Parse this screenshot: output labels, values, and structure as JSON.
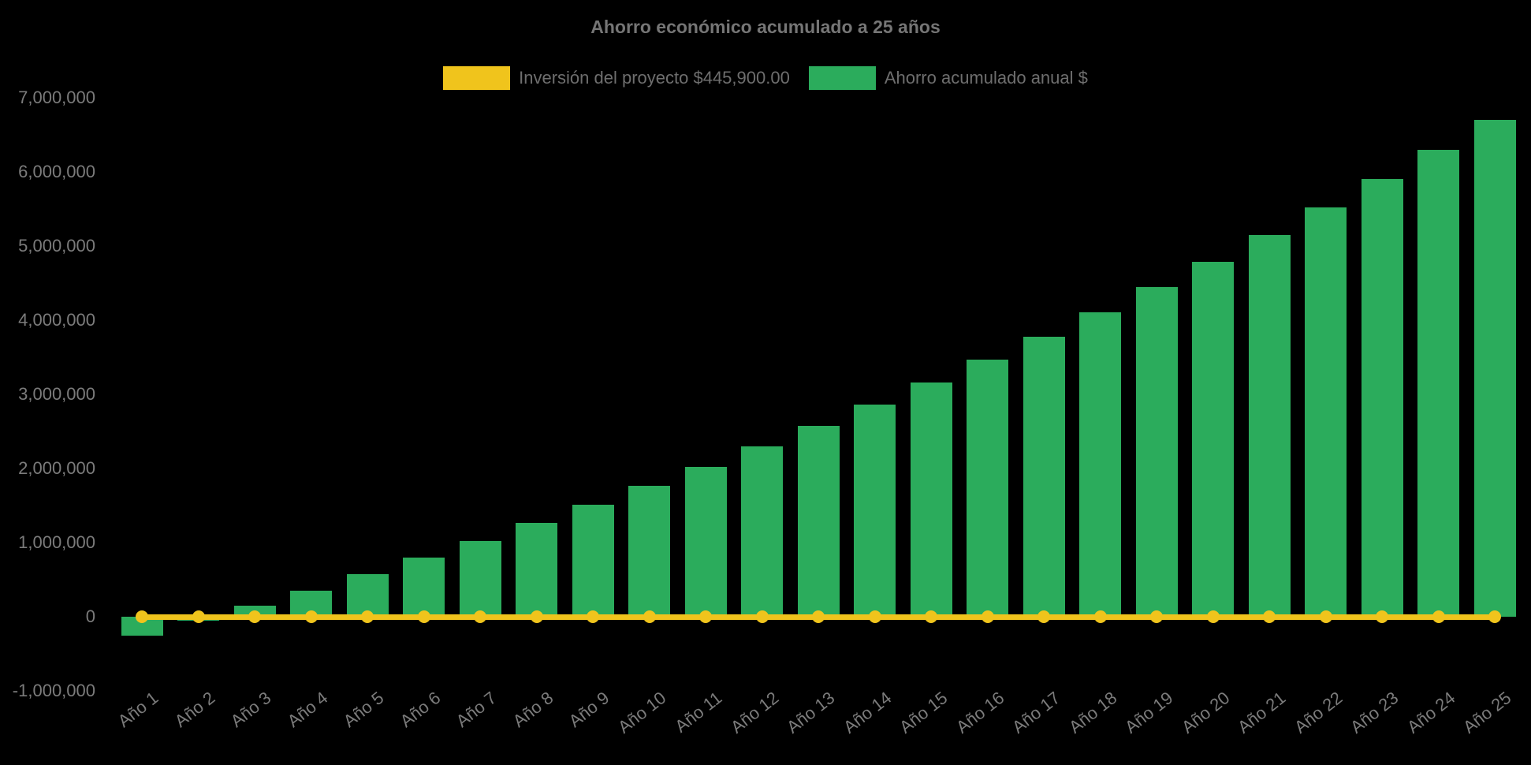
{
  "title": "Ahorro económico acumulado a 25 años",
  "legend": [
    {
      "label": "Inversión del proyecto $445,900.00",
      "color": "#F0C41C"
    },
    {
      "label": "Ahorro acumulado anual $",
      "color": "#2BAC5C"
    }
  ],
  "colors": {
    "background": "#000000",
    "bar_green": "#2BAC5C",
    "line_yellow": "#F0C41C",
    "text_gray": "#7B7B7B",
    "title_gray": "#757575"
  },
  "chart_data": {
    "type": "bar",
    "title": "Ahorro económico acumulado a 25 años",
    "categories": [
      "Año 1",
      "Año 2",
      "Año 3",
      "Año 4",
      "Año 5",
      "Año 6",
      "Año 7",
      "Año 8",
      "Año 9",
      "Año 10",
      "Año 11",
      "Año 12",
      "Año 13",
      "Año 14",
      "Año 15",
      "Año 16",
      "Año 17",
      "Año 18",
      "Año 19",
      "Año 20",
      "Año 21",
      "Año 22",
      "Año 23",
      "Año 24",
      "Año 25"
    ],
    "series": [
      {
        "name": "Ahorro acumulado anual $",
        "type": "bar",
        "color": "#2BAC5C",
        "values": [
          -254900,
          -57800,
          145600,
          355600,
          572200,
          795800,
          1026500,
          1264600,
          1510400,
          1764000,
          2025700,
          2295800,
          2574500,
          2862200,
          3159000,
          3465400,
          3781600,
          4107800,
          4444600,
          4792100,
          5150700,
          5520800,
          5902700,
          6296900,
          6703600
        ]
      },
      {
        "name": "Inversión del proyecto $445,900.00",
        "type": "line",
        "color": "#F0C41C",
        "investment_value": 445900,
        "rendered_at_value": 0,
        "markers": true
      }
    ],
    "xlabel": "",
    "ylabel": "",
    "ylim": [
      -1000000,
      7000000
    ],
    "yticks": [
      {
        "value": 7000000,
        "label": "7,000,000"
      },
      {
        "value": 6000000,
        "label": "6,000,000"
      },
      {
        "value": 5000000,
        "label": "5,000,000"
      },
      {
        "value": 4000000,
        "label": "4,000,000"
      },
      {
        "value": 3000000,
        "label": "3,000,000"
      },
      {
        "value": 2000000,
        "label": "2,000,000"
      },
      {
        "value": 1000000,
        "label": "1,000,000"
      },
      {
        "value": 0,
        "label": "0"
      },
      {
        "value": -1000000,
        "label": "-1,000,000"
      }
    ],
    "grid": false,
    "legend_position": "top",
    "x_label_rotation_deg": -38
  }
}
